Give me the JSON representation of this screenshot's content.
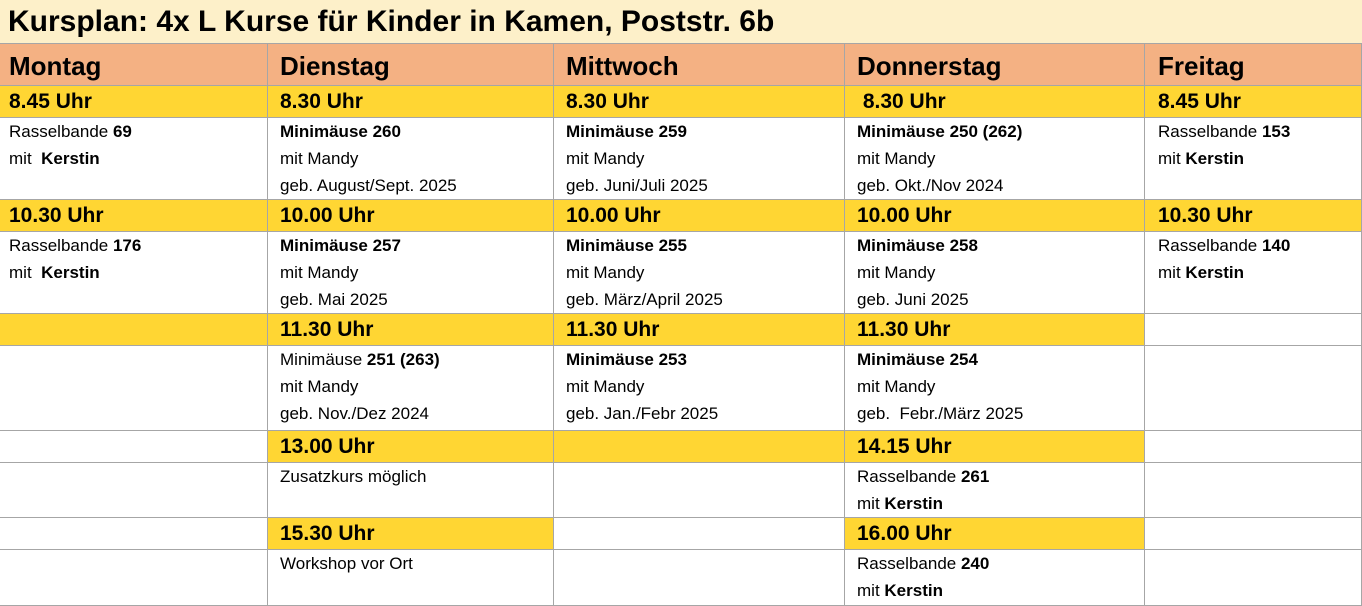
{
  "title": "Kursplan: 4x L Kurse für Kinder in Kamen, Poststr. 6b",
  "days": [
    "Montag",
    "Dienstag",
    "Mittwoch",
    "Donnerstag",
    "Freitag"
  ],
  "rows": [
    {
      "kind": "time",
      "cells": [
        "8.45 Uhr",
        "8.30 Uhr",
        "8.30 Uhr",
        " 8.30 Uhr",
        "8.45 Uhr"
      ],
      "highlight": [
        true,
        true,
        true,
        true,
        true
      ]
    },
    {
      "kind": "course",
      "cells": [
        [
          [
            {
              "text": "Rasselbande "
            },
            {
              "text": "69",
              "bold": true
            }
          ],
          [
            {
              "text": "mit  "
            },
            {
              "text": "Kerstin",
              "bold": true
            }
          ]
        ],
        [
          [
            {
              "text": "Minimäuse 260",
              "bold": true
            }
          ],
          [
            {
              "text": "mit Mandy"
            }
          ],
          [
            {
              "text": "geb. August/Sept. 2025"
            }
          ]
        ],
        [
          [
            {
              "text": "Minimäuse 259",
              "bold": true
            }
          ],
          [
            {
              "text": "mit Mandy"
            }
          ],
          [
            {
              "text": "geb. Juni/Juli 2025"
            }
          ]
        ],
        [
          [
            {
              "text": "Minimäuse 250 (262)",
              "bold": true
            }
          ],
          [
            {
              "text": "mit Mandy"
            }
          ],
          [
            {
              "text": "geb. Okt./Nov 2024"
            }
          ]
        ],
        [
          [
            {
              "text": "Rasselbande "
            },
            {
              "text": "153",
              "bold": true
            }
          ],
          [
            {
              "text": "mit "
            },
            {
              "text": "Kerstin",
              "bold": true
            }
          ]
        ]
      ]
    },
    {
      "kind": "time",
      "cells": [
        "10.30 Uhr",
        "10.00 Uhr",
        "10.00 Uhr",
        "10.00 Uhr",
        "10.30 Uhr"
      ],
      "highlight": [
        true,
        true,
        true,
        true,
        true
      ]
    },
    {
      "kind": "course",
      "cells": [
        [
          [
            {
              "text": "Rasselbande "
            },
            {
              "text": "176",
              "bold": true
            }
          ],
          [
            {
              "text": "mit  "
            },
            {
              "text": "Kerstin",
              "bold": true
            }
          ]
        ],
        [
          [
            {
              "text": "Minimäuse 257",
              "bold": true
            }
          ],
          [
            {
              "text": "mit Mandy"
            }
          ],
          [
            {
              "text": "geb. Mai 2025"
            }
          ]
        ],
        [
          [
            {
              "text": "Minimäuse 255",
              "bold": true
            }
          ],
          [
            {
              "text": "mit Mandy"
            }
          ],
          [
            {
              "text": "geb. März/April 2025"
            }
          ]
        ],
        [
          [
            {
              "text": "Minimäuse 258",
              "bold": true
            }
          ],
          [
            {
              "text": "mit Mandy"
            }
          ],
          [
            {
              "text": "geb. Juni 2025"
            }
          ]
        ],
        [
          [
            {
              "text": "Rasselbande "
            },
            {
              "text": "140",
              "bold": true
            }
          ],
          [
            {
              "text": "mit "
            },
            {
              "text": "Kerstin",
              "bold": true
            }
          ]
        ]
      ]
    },
    {
      "kind": "time",
      "cells": [
        null,
        "11.30 Uhr",
        "11.30 Uhr",
        "11.30 Uhr",
        null
      ],
      "highlight": [
        true,
        true,
        true,
        true,
        false
      ]
    },
    {
      "kind": "course",
      "cells": [
        null,
        [
          [
            {
              "text": "Minimäuse "
            },
            {
              "text": "251 (263)",
              "bold": true
            }
          ],
          [
            {
              "text": "mit Mandy"
            }
          ],
          [
            {
              "text": "geb. Nov./Dez 2024"
            }
          ]
        ],
        [
          [
            {
              "text": "Minimäuse 253",
              "bold": true
            }
          ],
          [
            {
              "text": "mit Mandy"
            }
          ],
          [
            {
              "text": "geb. Jan./Febr 2025"
            }
          ]
        ],
        [
          [
            {
              "text": "Minimäuse 254",
              "bold": true
            }
          ],
          [
            {
              "text": "mit Mandy"
            }
          ],
          [
            {
              "text": "geb.  Febr./März 2025"
            }
          ]
        ],
        null
      ]
    },
    {
      "kind": "time",
      "cells": [
        null,
        "13.00 Uhr",
        null,
        "14.15 Uhr",
        null
      ],
      "highlight": [
        false,
        true,
        true,
        true,
        false
      ]
    },
    {
      "kind": "course",
      "cells": [
        null,
        [
          [
            {
              "text": "Zusatzkurs möglich"
            }
          ]
        ],
        null,
        [
          [
            {
              "text": "Rasselbande "
            },
            {
              "text": "261",
              "bold": true
            }
          ],
          [
            {
              "text": "mit "
            },
            {
              "text": "Kerstin",
              "bold": true
            }
          ]
        ],
        null
      ]
    },
    {
      "kind": "time",
      "cells": [
        null,
        "15.30 Uhr",
        null,
        "16.00 Uhr",
        null
      ],
      "highlight": [
        false,
        true,
        false,
        true,
        false
      ]
    },
    {
      "kind": "course",
      "cells": [
        null,
        [
          [
            {
              "text": "Workshop vor Ort"
            }
          ]
        ],
        null,
        [
          [
            {
              "text": "Rasselbande "
            },
            {
              "text": "240",
              "bold": true
            }
          ],
          [
            {
              "text": "mit "
            },
            {
              "text": "Kerstin",
              "bold": true
            }
          ]
        ],
        null
      ]
    }
  ]
}
